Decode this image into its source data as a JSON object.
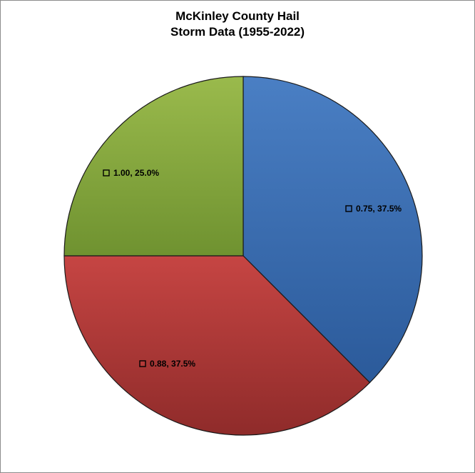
{
  "chart_data": {
    "type": "pie",
    "title_lines": [
      "McKinley County Hail",
      "Storm Data (1955-2022)"
    ],
    "slices": [
      {
        "category": "0.75",
        "percent": 37.5,
        "label": "0.75, 37.5%",
        "color": "#3a6db3"
      },
      {
        "category": "0.88",
        "percent": 37.5,
        "label": "0.88, 37.5%",
        "color": "#b43a38"
      },
      {
        "category": "1.00",
        "percent": 25.0,
        "label": "1.00, 25.0%",
        "color": "#8aae3f"
      }
    ]
  }
}
